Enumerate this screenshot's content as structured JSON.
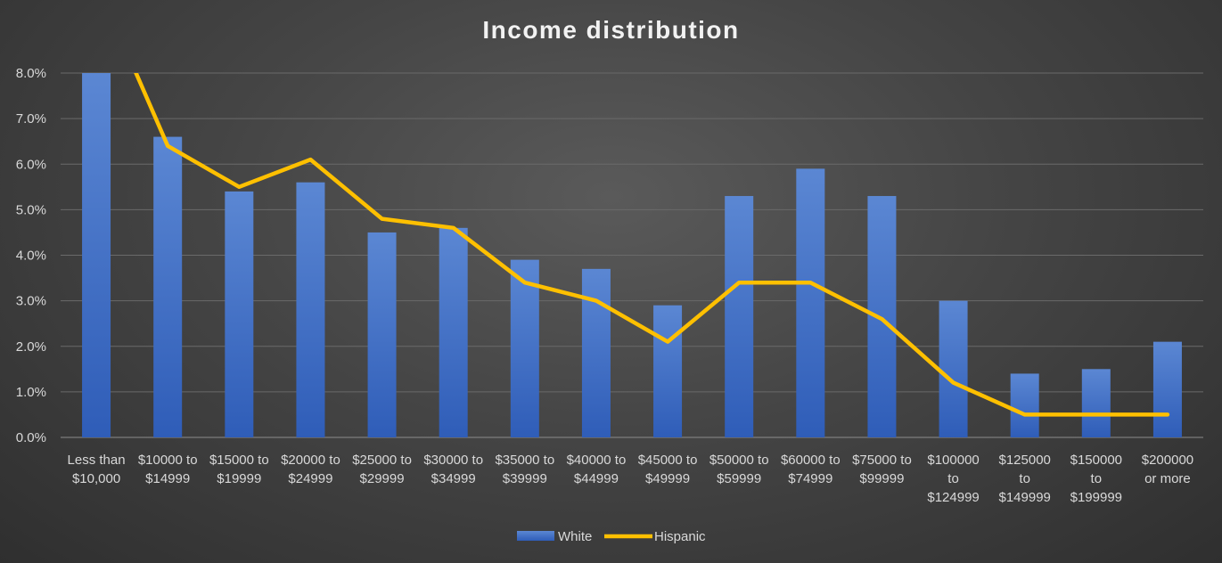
{
  "chart_data": {
    "type": "bar",
    "title": "Income distribution",
    "xlabel": "",
    "ylabel": "",
    "ylim": [
      0,
      8
    ],
    "y_ticks": [
      "0.0%",
      "1.0%",
      "2.0%",
      "3.0%",
      "4.0%",
      "5.0%",
      "6.0%",
      "7.0%",
      "8.0%"
    ],
    "y_tick_values": [
      0,
      1,
      2,
      3,
      4,
      5,
      6,
      7,
      8
    ],
    "grid": true,
    "legend_position": "bottom",
    "categories": [
      [
        "Less than",
        "$10,000"
      ],
      [
        "$10000 to",
        "$14999"
      ],
      [
        "$15000 to",
        "$19999"
      ],
      [
        "$20000 to",
        "$24999"
      ],
      [
        "$25000 to",
        "$29999"
      ],
      [
        "$30000 to",
        "$34999"
      ],
      [
        "$35000 to",
        "$39999"
      ],
      [
        "$40000 to",
        "$44999"
      ],
      [
        "$45000 to",
        "$49999"
      ],
      [
        "$50000 to",
        "$59999"
      ],
      [
        "$60000 to",
        "$74999"
      ],
      [
        "$75000 to",
        "$99999"
      ],
      [
        "$100000",
        "to",
        "$124999"
      ],
      [
        "$125000",
        "to",
        "$149999"
      ],
      [
        "$150000",
        "to",
        "$199999"
      ],
      [
        "$200000",
        "or more"
      ]
    ],
    "series": [
      {
        "name": "White",
        "type": "bar",
        "color": "#4472c4",
        "values": [
          8.0,
          6.6,
          5.4,
          5.6,
          4.5,
          4.6,
          3.9,
          3.7,
          2.9,
          5.3,
          5.9,
          5.3,
          3.0,
          1.4,
          1.5,
          2.1
        ]
      },
      {
        "name": "Hispanic",
        "type": "line",
        "color": "#ffc000",
        "values": [
          10.0,
          6.4,
          5.5,
          6.1,
          4.8,
          4.6,
          3.4,
          3.0,
          2.1,
          3.4,
          3.4,
          2.6,
          1.2,
          0.5,
          0.5,
          0.5
        ]
      }
    ]
  }
}
